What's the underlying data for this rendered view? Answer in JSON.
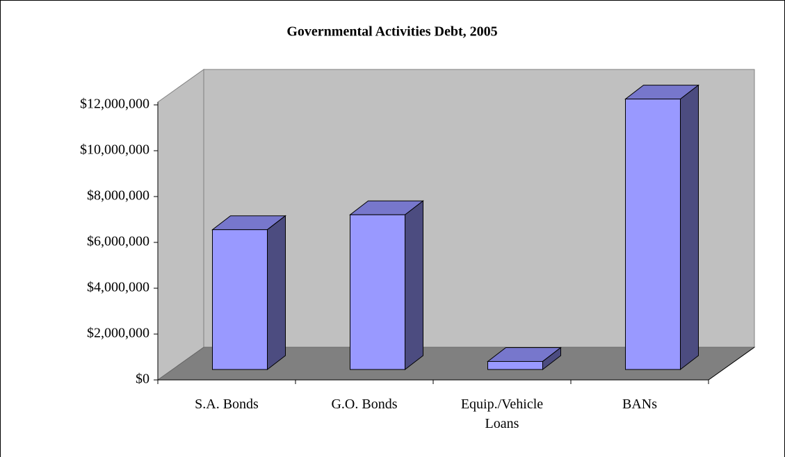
{
  "chart_data": {
    "type": "bar3d",
    "title": "Governmental Activities Debt, 2005",
    "categories": [
      "S.A. Bonds",
      "G.O. Bonds",
      "Equip./Vehicle Loans",
      "BANs"
    ],
    "values": [
      6100000,
      6750000,
      350000,
      11800000
    ],
    "color": "#9999ff",
    "ylim": [
      0,
      12000000
    ],
    "yticks": [
      {
        "value": 0,
        "label": "$0"
      },
      {
        "value": 2000000,
        "label": "$2,000,000"
      },
      {
        "value": 4000000,
        "label": "$4,000,000"
      },
      {
        "value": 6000000,
        "label": "$6,000,000"
      },
      {
        "value": 8000000,
        "label": "$8,000,000"
      },
      {
        "value": 10000000,
        "label": "$10,000,000"
      },
      {
        "value": 12000000,
        "label": "$12,000,000"
      }
    ]
  }
}
